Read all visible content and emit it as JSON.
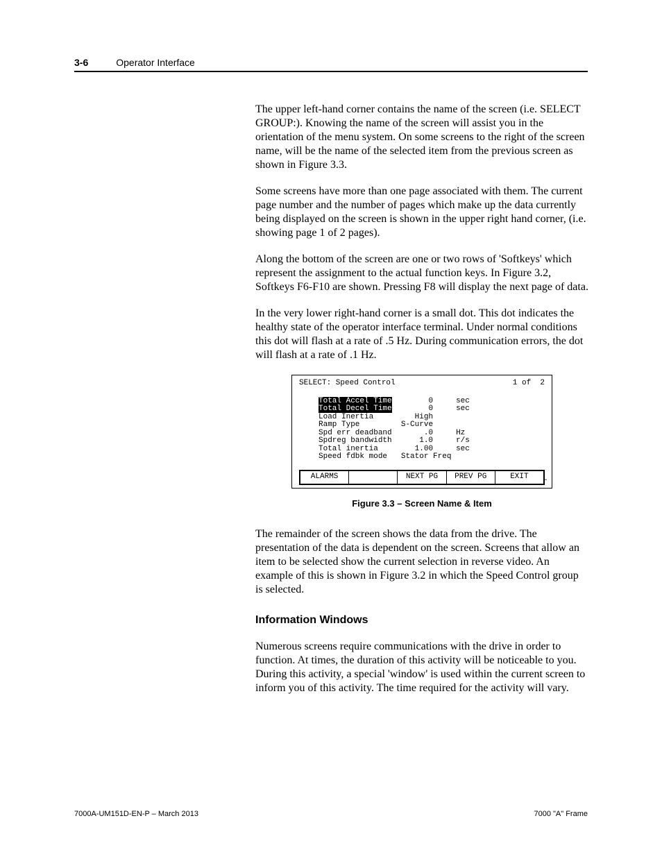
{
  "header": {
    "page_num": "3-6",
    "title": "Operator Interface"
  },
  "paragraphs": {
    "p1": "The upper left-hand corner contains the name of the screen (i.e. SELECT GROUP:).  Knowing the name of the screen will assist you in the orientation of the menu system.  On some screens to the right of the screen name, will be the name of the selected item from the previous screen as shown in Figure 3.3.",
    "p2": "Some screens have more than one page associated with them.  The current page number and the number of pages which make up the data currently being displayed on the screen is shown in the upper right hand corner, (i.e. showing page 1 of 2 pages).",
    "p3": "Along the bottom of the screen are one or two rows of 'Softkeys' which represent the assignment to the actual function keys.  In Figure 3.2, Softkeys F6-F10 are shown.  Pressing F8 will display the next page of data.",
    "p4": "In the very lower right-hand corner is a small dot.  This dot indicates the healthy state of the operator interface terminal.  Under normal conditions this dot will flash at a rate of .5 Hz.  During communication errors, the dot will flash at a rate of .1 Hz.",
    "p5": "The remainder of the screen shows the data from the drive.  The presentation of the data is dependent on the screen.  Screens that allow an item to be selected show the current selection in reverse video.  An example of this is shown in Figure 3.2 in which the Speed Control group is selected.",
    "p6": "Numerous screens require communications with the drive in order to function.  At times, the duration of this activity will be noticeable to you.  During this activity, a special 'window' is used within the current screen to inform you of this activity.  The time required for the activity will vary."
  },
  "section_heading": "Information Windows",
  "figure": {
    "caption": "Figure 3.3  –  Screen Name & Item",
    "screen_title": "SELECT: Speed Control",
    "page_indicator": "1 of  2",
    "rows": [
      {
        "label": "Total Accel Time",
        "value": "0",
        "unit": "sec",
        "inverse": true
      },
      {
        "label": "Total Decel Time",
        "value": "0",
        "unit": "sec",
        "inverse": true
      },
      {
        "label": "Load Inertia",
        "value": "High",
        "unit": "",
        "inverse": false
      },
      {
        "label": "Ramp Type",
        "value": "S-Curve",
        "unit": "",
        "inverse": false
      },
      {
        "label": "Spd err deadband",
        "value": ".0",
        "unit": "Hz",
        "inverse": false
      },
      {
        "label": "Spdreg bandwidth",
        "value": "1.0",
        "unit": "r/s",
        "inverse": false
      },
      {
        "label": "Total inertia",
        "value": "1.00",
        "unit": "sec",
        "inverse": false
      },
      {
        "label": "Speed fdbk mode",
        "value": "Stator Freq",
        "unit": "",
        "inverse": false
      }
    ],
    "softkeys": [
      "ALARMS",
      "",
      "NEXT PG",
      "PREV PG",
      "EXIT"
    ],
    "heartbeat": "–"
  },
  "footer": {
    "left": "7000A-UM151D-EN-P – March 2013",
    "right": "7000 \"A\" Frame"
  },
  "colors": {
    "text": "#000000",
    "background": "#ffffff",
    "inverse_bg": "#000000",
    "inverse_fg": "#ffffff"
  }
}
